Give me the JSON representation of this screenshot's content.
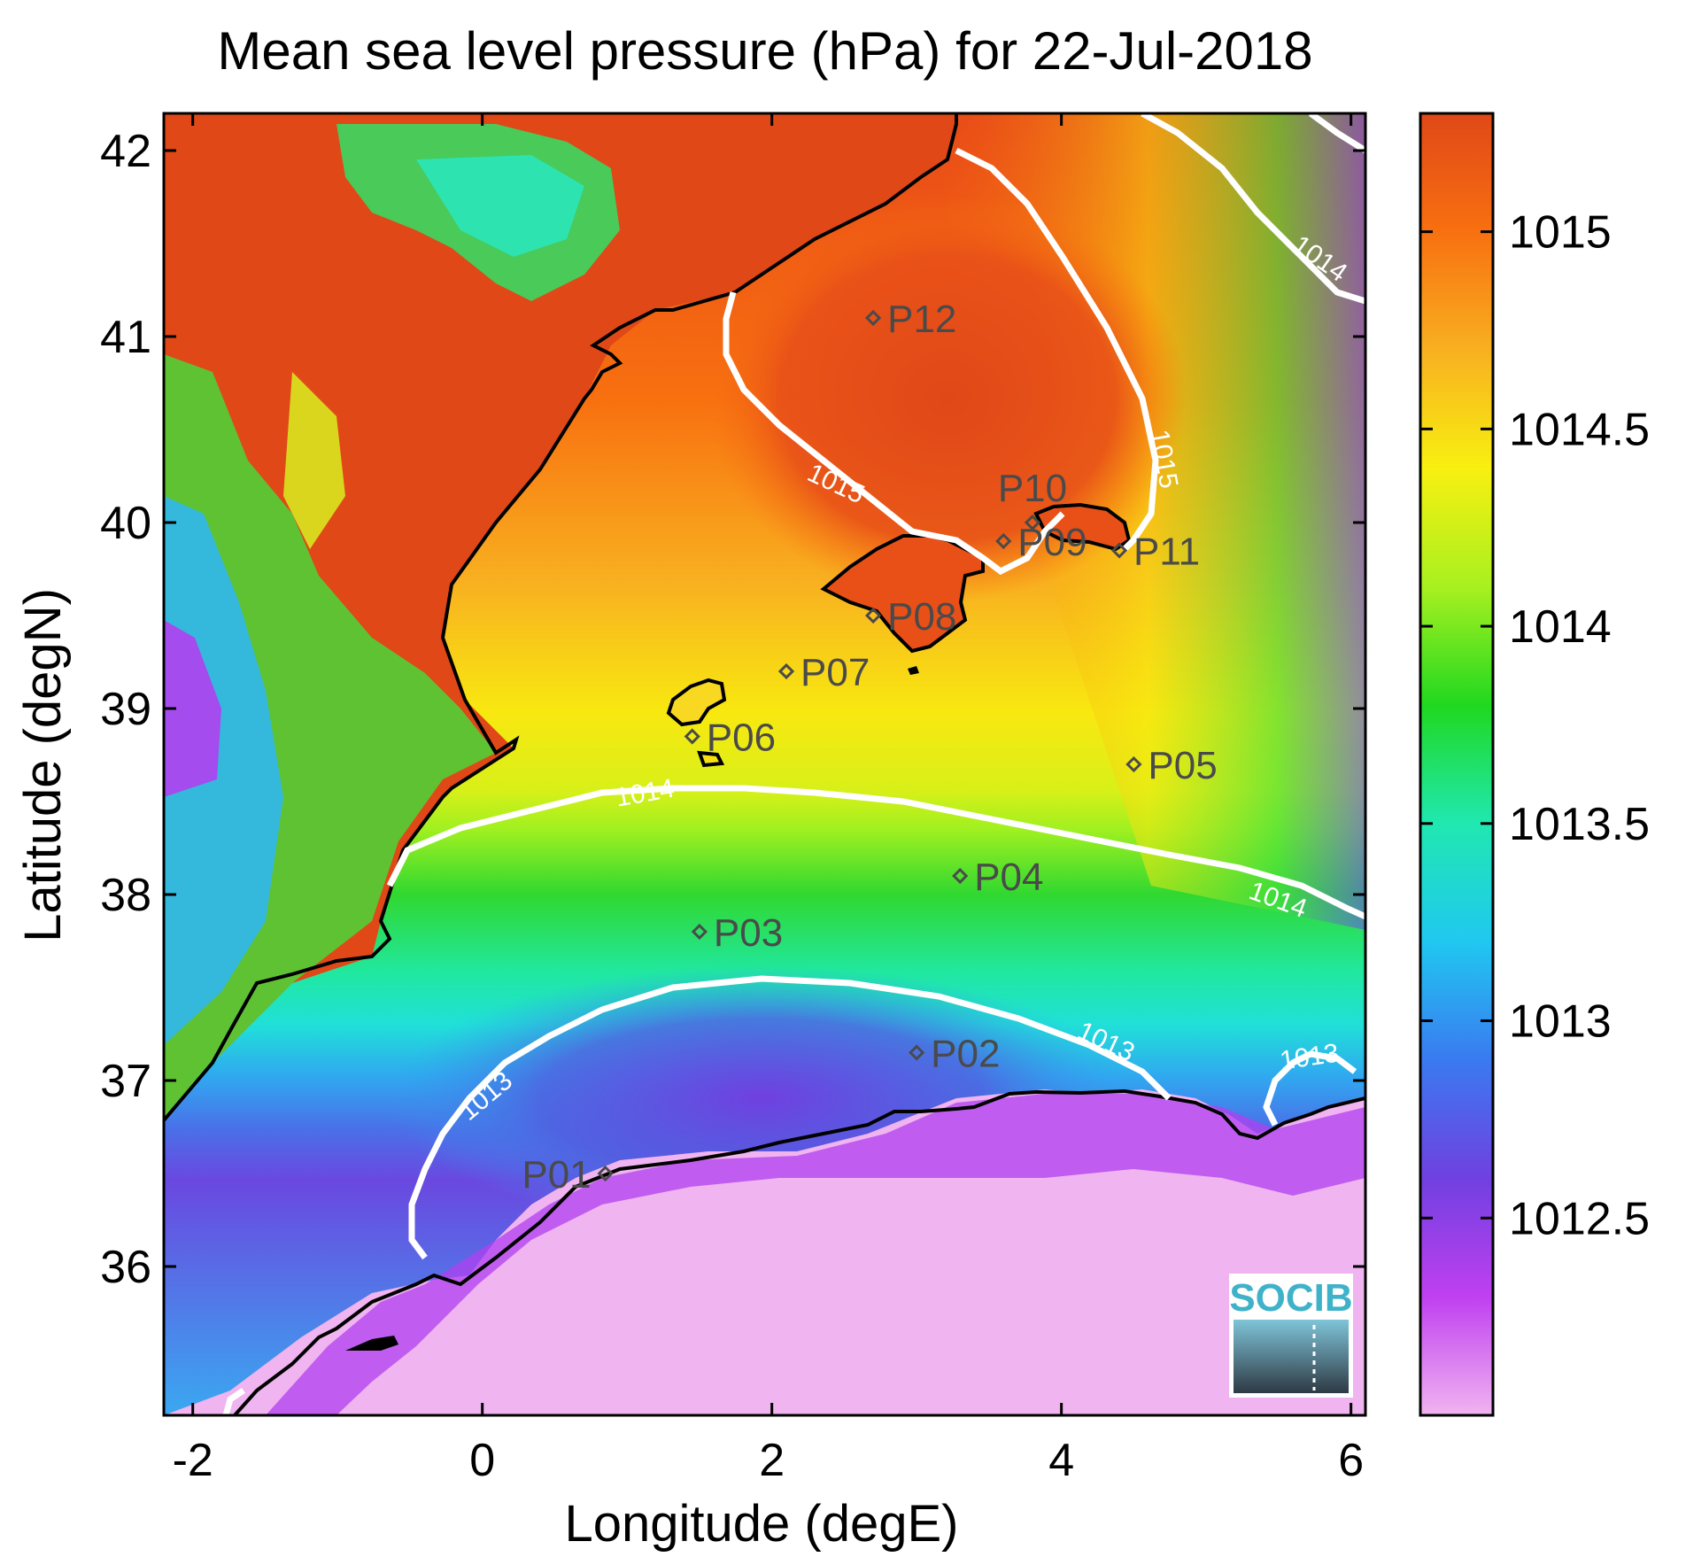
{
  "title": "Mean sea level pressure (hPa) for 22-Jul-2018",
  "xlabel": "Longitude (degE)",
  "ylabel": "Latitude (degN)",
  "x_ticks": [
    "-2",
    "0",
    "2",
    "4",
    "6"
  ],
  "y_ticks": [
    "42",
    "41",
    "40",
    "39",
    "38",
    "37",
    "36"
  ],
  "colorbar": {
    "ticks": [
      "1015",
      "1014.5",
      "1014",
      "1013.5",
      "1013",
      "1012.5"
    ],
    "range": [
      1012,
      1015.3
    ],
    "colors": [
      "#f0b4f0",
      "#c040f0",
      "#7040e0",
      "#3a7af0",
      "#20c8f0",
      "#20e8b0",
      "#20d820",
      "#a8f020",
      "#f8f010",
      "#f8b020",
      "#f87010",
      "#e04818"
    ]
  },
  "contour_labels": {
    "c1015_a": "1015",
    "c1015_b": "1015",
    "c1014_a": "1014",
    "c1014_b": "1014",
    "c1014_c": "1014",
    "c1013_a": "1013",
    "c1013_b": "1013",
    "c1013_c": "1013"
  },
  "stations": [
    {
      "id": "P01",
      "lon": 0.85,
      "lat": 36.5
    },
    {
      "id": "P02",
      "lon": 3.0,
      "lat": 37.15
    },
    {
      "id": "P03",
      "lon": 1.5,
      "lat": 37.8
    },
    {
      "id": "P04",
      "lon": 3.3,
      "lat": 38.1
    },
    {
      "id": "P05",
      "lon": 4.5,
      "lat": 38.7
    },
    {
      "id": "P06",
      "lon": 1.45,
      "lat": 38.85
    },
    {
      "id": "P07",
      "lon": 2.1,
      "lat": 39.2
    },
    {
      "id": "P08",
      "lon": 2.7,
      "lat": 39.5
    },
    {
      "id": "P09",
      "lon": 3.6,
      "lat": 39.9
    },
    {
      "id": "P10",
      "lon": 3.8,
      "lat": 40.0
    },
    {
      "id": "P11",
      "lon": 4.4,
      "lat": 39.85
    },
    {
      "id": "P12",
      "lon": 2.7,
      "lat": 41.1
    }
  ],
  "logo": "SOCIB",
  "chart_data": {
    "type": "heatmap",
    "title": "Mean sea level pressure (hPa) for 22-Jul-2018",
    "xlabel": "Longitude (degE)",
    "ylabel": "Latitude (degN)",
    "xlim": [
      -2.2,
      6.1
    ],
    "ylim": [
      35.2,
      42.2
    ],
    "value_range": [
      1012,
      1015.3
    ],
    "contour_levels": [
      1013,
      1014,
      1015
    ]
  }
}
